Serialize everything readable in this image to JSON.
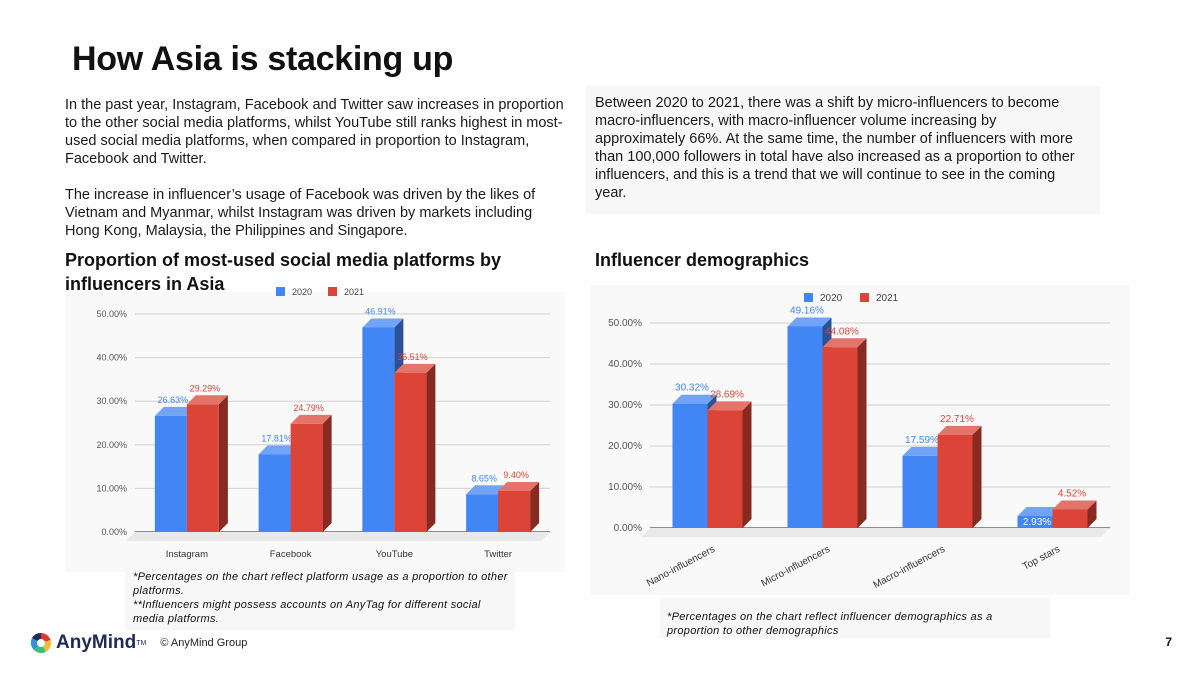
{
  "page": {
    "title": "How Asia is stacking up",
    "left_paragraphs": [
      "In the past year, Instagram, Facebook and Twitter saw increases in proportion to the other social media platforms, whilst YouTube still ranks highest in most-used social media platforms, when compared in proportion to Instagram, Facebook and Twitter.",
      "The increase in influencer’s usage of Facebook was driven by the likes of Vietnam and Myanmar, whilst Instagram was driven by markets including Hong Kong, Malaysia, the Philippines and Singapore."
    ],
    "right_paragraph": "Between 2020 to 2021, there was a shift by micro-influencers to become macro-influencers, with macro-influencer volume increasing by approximately 66%. At the same time, the number of influencers with more than 100,000 followers in total have also increased as a proportion to other influencers, and this is a trend that we will continue to see in the coming year.",
    "left_note": "*Percentages on the chart reflect platform usage as a proportion to other platforms.\n**Influencers might possess accounts on AnyTag for different social media platforms.",
    "right_note": "*Percentages on the chart reflect influencer demographics as a proportion to other demographics",
    "footer": {
      "brand": "AnyMind",
      "tm": "TM",
      "copyright": "© AnyMind Group",
      "page_number": "7"
    }
  },
  "chart_data": [
    {
      "type": "bar",
      "title": "Proportion of most-used social media platforms by influencers in Asia",
      "categories": [
        "Instagram",
        "Facebook",
        "YouTube",
        "Twitter"
      ],
      "series": [
        {
          "name": "2020",
          "color": "#4285f4",
          "values": [
            26.63,
            17.81,
            46.91,
            8.65
          ],
          "labels": [
            "26.63%",
            "17.81%",
            "46.91%",
            "8.65%"
          ]
        },
        {
          "name": "2021",
          "color": "#db4437",
          "values": [
            29.29,
            24.79,
            36.51,
            9.4
          ],
          "labels": [
            "29.29%",
            "24.79%",
            "36.51%",
            "9.40%"
          ]
        }
      ],
      "ylim": [
        0,
        50
      ],
      "yticks": [
        "0.00%",
        "10.00%",
        "20.00%",
        "30.00%",
        "40.00%",
        "50.00%"
      ],
      "legend": "top-center",
      "grid": true
    },
    {
      "type": "bar",
      "title": "Influencer demographics",
      "categories": [
        "Nano-influencers",
        "Micro-influencers",
        "Macro-influencers",
        "Top stars"
      ],
      "series": [
        {
          "name": "2020",
          "color": "#4285f4",
          "values": [
            30.32,
            49.16,
            17.59,
            2.93
          ],
          "labels": [
            "30.32%",
            "49.16%",
            "17.59%",
            "2.93%"
          ]
        },
        {
          "name": "2021",
          "color": "#db4437",
          "values": [
            28.69,
            44.08,
            22.71,
            4.52
          ],
          "labels": [
            "28.69%",
            "44.08%",
            "22.71%",
            "4.52%"
          ]
        }
      ],
      "ylim": [
        0,
        50
      ],
      "yticks": [
        "0.00%",
        "10.00%",
        "20.00%",
        "30.00%",
        "40.00%",
        "50.00%"
      ],
      "legend": "top-center",
      "grid": true
    }
  ]
}
